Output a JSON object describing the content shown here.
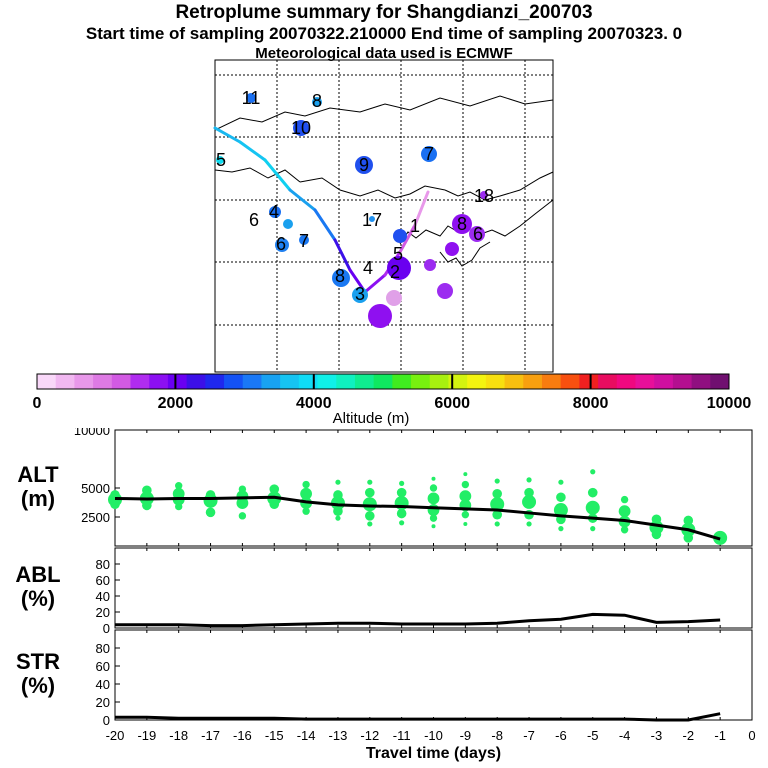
{
  "header": {
    "title": "Retroplume summary for Shangdianzi_200703",
    "sampling_line": "Start time of sampling 20070322.210000     End time of sampling 20070323.     0",
    "met_line": "Meteorological data used is ECMWF"
  },
  "colorbar": {
    "ticks": [
      0,
      2000,
      4000,
      6000,
      8000,
      10000
    ],
    "label": "Altitude (m)",
    "colors": [
      "#f9d8f9",
      "#f1b8f1",
      "#e898ea",
      "#de7ae4",
      "#d25ae3",
      "#b02cf0",
      "#8c10f2",
      "#6a00f2",
      "#3c10e8",
      "#1f28ee",
      "#1452f5",
      "#1a78f6",
      "#18a2f2",
      "#16c4f2",
      "#10dcf6",
      "#10f0e8",
      "#10f0c0",
      "#10ec90",
      "#10e860",
      "#40ec20",
      "#78f010",
      "#a8f010",
      "#d4f410",
      "#f4f410",
      "#f8e010",
      "#f8c010",
      "#f8a010",
      "#f87c10",
      "#f85010",
      "#f02020",
      "#e80c60",
      "#f00880",
      "#e8109a",
      "#d010a0",
      "#b41090",
      "#901080",
      "#701070"
    ]
  },
  "map": {
    "ticks": [
      {
        "label": "11",
        "color": "#1a70f2"
      },
      {
        "label": "8",
        "color": "#1aa0ee"
      },
      {
        "label": "10",
        "color": "#2050f0"
      },
      {
        "label": "9",
        "color": "#2050ee"
      },
      {
        "label": "7",
        "color": "#1a70f2"
      },
      {
        "label": "5",
        "color": "#10dcf0"
      },
      {
        "label": "18",
        "color": "#9c2cf0"
      },
      {
        "label": "8",
        "color": "#8f10f0"
      },
      {
        "label": "6",
        "color": "#9c2cf0"
      },
      {
        "label": "17",
        "color": "#2090f0"
      },
      {
        "label": "1",
        "color": "#2050f0"
      },
      {
        "label": "5",
        "color": "#8f10f0"
      },
      {
        "label": "4",
        "color": "#9c2cf0"
      },
      {
        "label": "3",
        "color": "#9c2cf0"
      },
      {
        "label": "2",
        "color": "#e0a0e8"
      },
      {
        "label": "8",
        "color": "#8f10f0"
      },
      {
        "label": "6",
        "color": "#6a00f0"
      },
      {
        "label": "6",
        "color": "#1aa0ee"
      },
      {
        "label": "7",
        "color": "#1a78f2"
      },
      {
        "label": "4",
        "color": "#2080f0"
      },
      {
        "label": "13",
        "color": "#1a78f2"
      }
    ]
  },
  "chart_data": [
    {
      "type": "scatter",
      "panel": "ALT",
      "ylabel": "ALT\n(m)",
      "ylim": [
        0,
        10000
      ],
      "yticks": [
        2500,
        5000,
        10000
      ],
      "x": [
        -20,
        -19,
        -18,
        -17,
        -16,
        -15,
        -14,
        -13,
        -12,
        -11,
        -10,
        -9,
        -8,
        -7,
        -6,
        -5,
        -4,
        -3,
        -2,
        -1
      ],
      "median_line": [
        4100,
        4050,
        4100,
        4100,
        4150,
        4200,
        3800,
        3550,
        3450,
        3400,
        3300,
        3200,
        3100,
        2850,
        2600,
        2400,
        2200,
        1800,
        1400,
        600
      ],
      "plume_points": [
        {
          "x": -20,
          "values": [
            3600,
            4000,
            4400
          ]
        },
        {
          "x": -19,
          "values": [
            3500,
            4100,
            4800
          ]
        },
        {
          "x": -18,
          "values": [
            3400,
            4000,
            4500,
            5200
          ]
        },
        {
          "x": -17,
          "values": [
            2900,
            3900,
            4400
          ]
        },
        {
          "x": -16,
          "values": [
            2600,
            3700,
            4300,
            4900
          ]
        },
        {
          "x": -15,
          "values": [
            3600,
            4100,
            4900
          ]
        },
        {
          "x": -14,
          "values": [
            3000,
            3700,
            4500,
            5300
          ]
        },
        {
          "x": -13,
          "values": [
            2400,
            3000,
            3700,
            4400,
            5500
          ]
        },
        {
          "x": -12,
          "values": [
            1900,
            2600,
            3600,
            4600,
            5500
          ]
        },
        {
          "x": -11,
          "values": [
            2000,
            2800,
            3700,
            4600,
            5400
          ]
        },
        {
          "x": -10,
          "values": [
            1700,
            2400,
            3100,
            4100,
            5000,
            5800
          ]
        },
        {
          "x": -9,
          "values": [
            1900,
            2700,
            3500,
            4300,
            5300,
            6200
          ]
        },
        {
          "x": -8,
          "values": [
            1900,
            2700,
            3600,
            4500,
            5600
          ]
        },
        {
          "x": -7,
          "values": [
            1900,
            2700,
            3800,
            4600,
            5700
          ]
        },
        {
          "x": -6,
          "values": [
            1500,
            2300,
            3100,
            4200,
            5500
          ]
        },
        {
          "x": -5,
          "values": [
            1500,
            2400,
            3300,
            4600,
            6400
          ]
        },
        {
          "x": -4,
          "values": [
            1400,
            2100,
            3000,
            4000
          ]
        },
        {
          "x": -3,
          "values": [
            1000,
            1600,
            2300
          ]
        },
        {
          "x": -2,
          "values": [
            700,
            1400,
            2200
          ]
        },
        {
          "x": -1,
          "values": [
            700
          ]
        }
      ]
    },
    {
      "type": "line",
      "panel": "ABL",
      "ylabel": "ABL\n(%)",
      "ylim": [
        0,
        100
      ],
      "yticks": [
        0,
        20,
        40,
        60,
        80
      ],
      "x": [
        -20,
        -19,
        -18,
        -17,
        -16,
        -15,
        -14,
        -13,
        -12,
        -11,
        -10,
        -9,
        -8,
        -7,
        -6,
        -5,
        -4,
        -3,
        -2,
        -1
      ],
      "values": [
        4,
        4,
        4,
        3,
        3,
        4,
        5,
        6,
        6,
        5,
        5,
        5,
        6,
        9,
        11,
        17,
        16,
        7,
        8,
        10
      ]
    },
    {
      "type": "line",
      "panel": "STR",
      "ylabel": "STR\n(%)",
      "ylim": [
        0,
        100
      ],
      "yticks": [
        0,
        20,
        40,
        60,
        80
      ],
      "x": [
        -20,
        -19,
        -18,
        -17,
        -16,
        -15,
        -14,
        -13,
        -12,
        -11,
        -10,
        -9,
        -8,
        -7,
        -6,
        -5,
        -4,
        -3,
        -2,
        -1
      ],
      "values": [
        3,
        3,
        2,
        2,
        2,
        2,
        1,
        1,
        1,
        1,
        1,
        1,
        1,
        1,
        1,
        1,
        1,
        0,
        0,
        7
      ],
      "xticks": [
        -20,
        -19,
        -18,
        -17,
        -16,
        -15,
        -14,
        -13,
        -12,
        -11,
        -10,
        -9,
        -8,
        -7,
        -6,
        -5,
        -4,
        -3,
        -2,
        -1,
        0
      ],
      "xlabel": "Travel time (days)"
    }
  ]
}
